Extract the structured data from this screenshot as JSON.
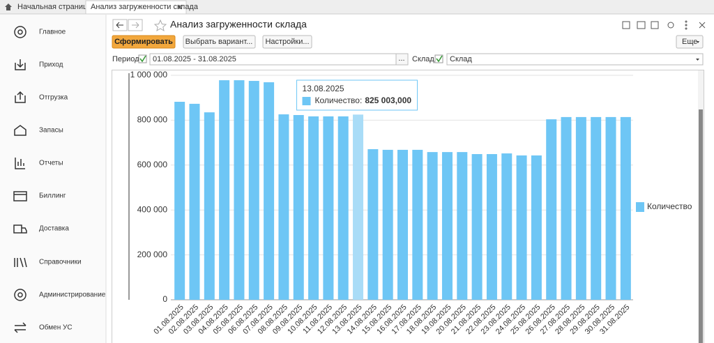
{
  "tabs": [
    "Начальная страница",
    "Анализ загруженности склада"
  ],
  "sidebar": [
    "Главное",
    "Приход",
    "Отгрузка",
    "Запасы",
    "Отчеты",
    "Биллинг",
    "Доставка",
    "Справочники",
    "Администрирование",
    "Обмен УС"
  ],
  "form": {
    "title": "Анализ загруженности склада",
    "buttons": [
      "Сформировать",
      "Выбрать вариант...",
      "Настройки..."
    ],
    "more": "Еще",
    "period_label": "Период:",
    "period_value": "01.08.2025 - 31.08.2025",
    "period_button": "...",
    "warehouse_label": "Склад:",
    "warehouse_value": "Склад"
  },
  "chart_data": {
    "type": "bar",
    "categories": [
      "01.08.2025",
      "02.08.2025",
      "03.08.2025",
      "04.08.2025",
      "05.08.2025",
      "06.08.2025",
      "07.08.2025",
      "08.08.2025",
      "09.08.2025",
      "10.08.2025",
      "11.08.2025",
      "12.08.2025",
      "13.08.2025",
      "14.08.2025",
      "15.08.2025",
      "16.08.2025",
      "17.08.2025",
      "18.08.2025",
      "19.08.2025",
      "20.08.2025",
      "21.08.2025",
      "22.08.2025",
      "23.08.2025",
      "24.08.2025",
      "25.08.2025",
      "26.08.2025",
      "27.08.2025",
      "28.08.2025",
      "29.08.2025",
      "30.08.2025",
      "31.08.2025"
    ],
    "series": [
      {
        "name": "Количество",
        "color": "#6ec6f5",
        "values": [
          882000,
          873000,
          835000,
          978000,
          978000,
          975000,
          969000,
          826000,
          823000,
          817000,
          817000,
          817000,
          825003,
          671000,
          668000,
          668000,
          668000,
          658000,
          658000,
          658000,
          649000,
          649000,
          652000,
          643000,
          643000,
          804000,
          814000,
          814000,
          814000,
          814000,
          814000
        ]
      }
    ],
    "ylim": [
      0,
      1000000
    ],
    "yticks": [
      0,
      {
        "value": 200000,
        "label": "200 000"
      },
      {
        "value": 400000,
        "label": "400 000"
      },
      {
        "value": 600000,
        "label": "600 000"
      },
      {
        "value": 800000,
        "label": "800 000"
      },
      {
        "value": 1000000,
        "label": "1 000 000"
      }
    ],
    "grid": true,
    "legend": "right",
    "tooltip": {
      "title": "13.08.2025",
      "label": "Количество:",
      "value_label": "825 003,000",
      "highlight_color": "#a9dcf7"
    }
  }
}
